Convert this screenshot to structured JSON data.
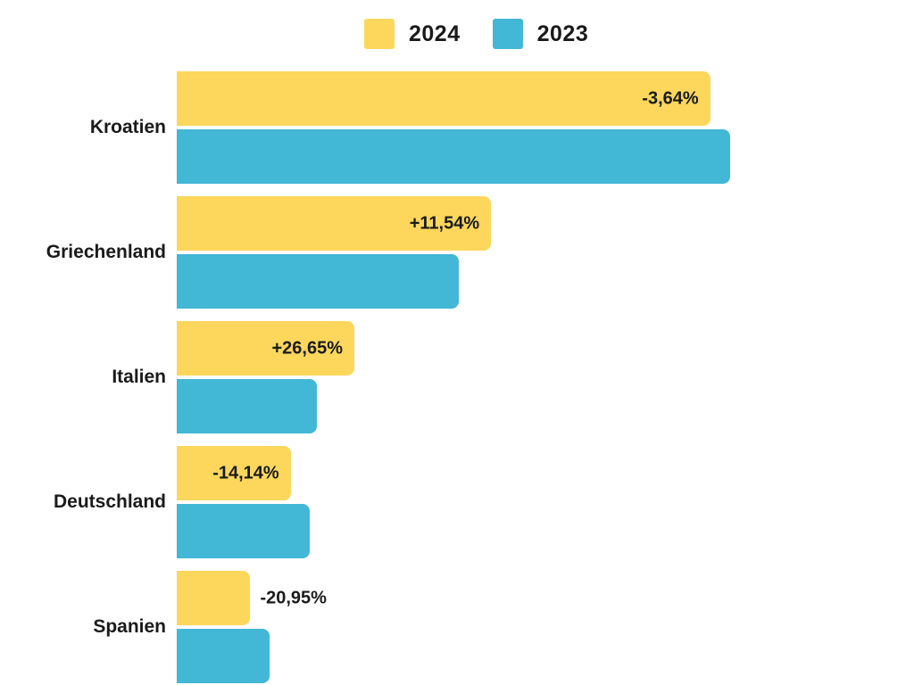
{
  "chart_data": {
    "type": "bar",
    "orientation": "horizontal",
    "legend_position": "top",
    "grid": "off",
    "axes": "hidden",
    "values_unit": "relative length, percent of longest bar (estimated from pixels; no numeric axis shown)",
    "categories": [
      "Kroatien",
      "Griechenland",
      "Italien",
      "Deutschland",
      "Spanien"
    ],
    "series": [
      {
        "name": "2024",
        "color": "#FDD75C",
        "values": [
          96.4,
          56.8,
          32.1,
          20.6,
          13.3
        ],
        "data_labels": [
          "-3,64%",
          "+11,54%",
          "+26,65%",
          "-14,14%",
          "-20,95%"
        ]
      },
      {
        "name": "2023",
        "color": "#43B7D6",
        "values": [
          100,
          50.9,
          25.3,
          24,
          16.8
        ]
      }
    ]
  },
  "colors": {
    "background": "#FFFFFF",
    "text": "#1A1A1A"
  }
}
